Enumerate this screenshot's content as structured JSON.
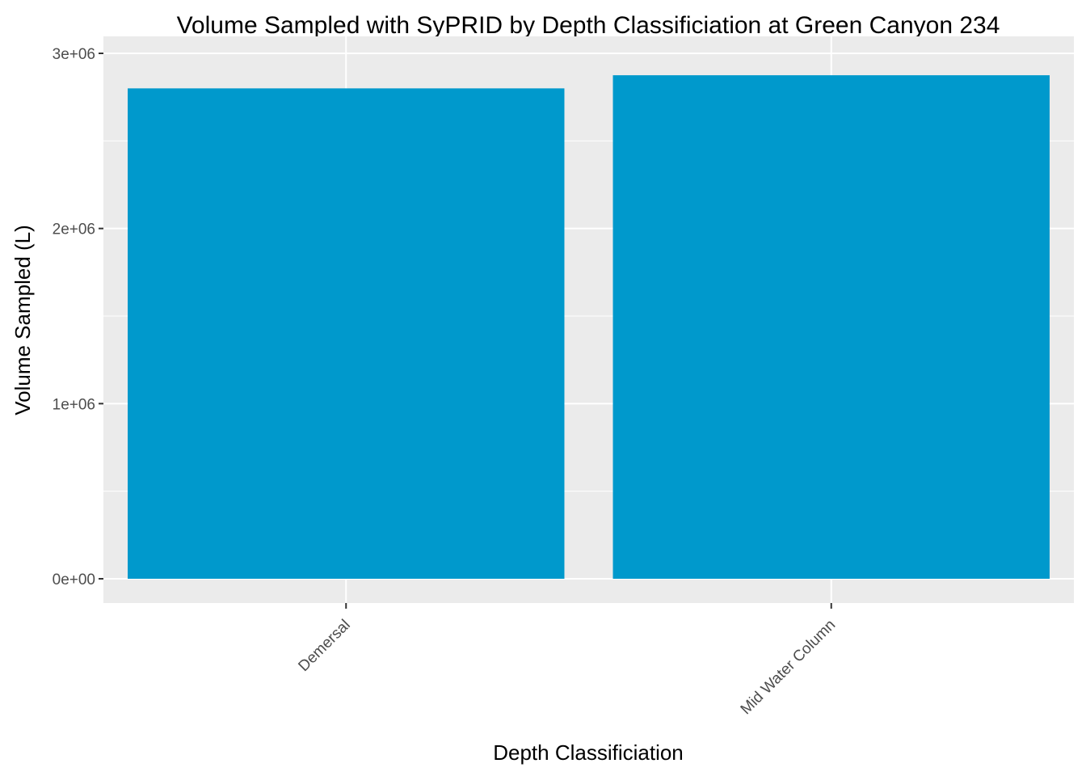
{
  "chart_data": {
    "type": "bar",
    "title": "Volume Sampled with SyPRID by Depth Classificiation at Green Canyon 234",
    "xlabel": "Depth Classificiation",
    "ylabel": "Volume Sampled (L)",
    "categories": [
      "Demersal",
      "Mid Water Column"
    ],
    "values": [
      2800000,
      2875000
    ],
    "ylim": [
      0,
      3000000
    ],
    "yticks": [
      0,
      1000000,
      2000000,
      3000000
    ],
    "ytick_labels": [
      "0e+00",
      "1e+06",
      "2e+06",
      "3e+06"
    ],
    "grid": true,
    "legend": "none",
    "bar_color": "#0099CC",
    "panel_color": "#EBEBEB",
    "grid_color": "#FFFFFF"
  }
}
